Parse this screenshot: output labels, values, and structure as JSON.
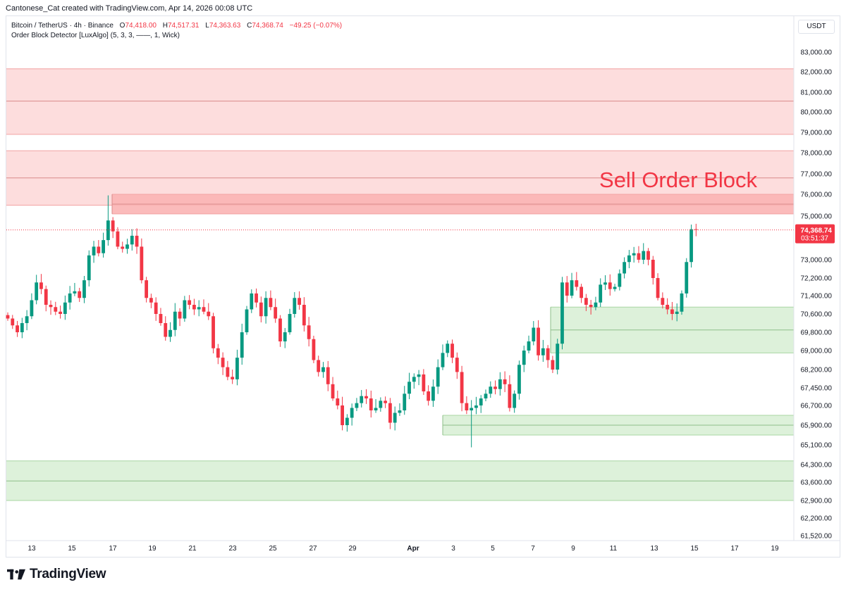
{
  "credit": "Cantonese_Cat created with TradingView.com, Apr 14, 2026 00:08 UTC",
  "legend": {
    "symbol": "Bitcoin / TetherUS · 4h · Binance",
    "o_label": "O",
    "o_value": "74,418.00",
    "h_label": "H",
    "h_value": "74,517.31",
    "l_label": "L",
    "l_value": "74,363.63",
    "c_label": "C",
    "c_value": "74,368.74",
    "change": "−49.25 (−0.07%)",
    "indicator": "Order Block Detector [LuxAlgo] (5, 3, 3, ——, 1, Wick)"
  },
  "currency": "USDT",
  "brand": {
    "name": "TradingView"
  },
  "colors": {
    "up": "#089981",
    "down": "#f23645",
    "bear_zone": "#fdd9d9",
    "bull_zone": "#d9efd6",
    "annotation": "#f23645"
  },
  "chart_data": {
    "type": "candlestick",
    "title": "Bitcoin / TetherUS · 4h · Binance",
    "y_ticks": [
      "83,000.00",
      "82,000.00",
      "81,000.00",
      "80,000.00",
      "79,000.00",
      "78,000.00",
      "77,000.00",
      "76,000.00",
      "75,000.00",
      "73,000.00",
      "72,200.00",
      "71,400.00",
      "70,600.00",
      "69,800.00",
      "69,000.00",
      "68,200.00",
      "67,450.00",
      "66,700.00",
      "65,900.00",
      "65,100.00",
      "64,300.00",
      "63,600.00",
      "62,900.00",
      "62,200.00",
      "61,520.00"
    ],
    "x_ticks": [
      "13",
      "15",
      "17",
      "19",
      "21",
      "23",
      "25",
      "27",
      "29",
      "Apr",
      "3",
      "5",
      "7",
      "9",
      "11",
      "13",
      "15",
      "17",
      "19"
    ],
    "annotation": "Sell Order Block",
    "last_price": {
      "value": 74368.74,
      "label": "74,368.74",
      "countdown": "03:51:37"
    },
    "order_blocks": [
      {
        "type": "bearish",
        "from": "Mar 12",
        "top": 82150,
        "bottom": 78900,
        "mid": 80550
      },
      {
        "type": "bearish",
        "from": "Mar 12",
        "top": 78100,
        "bottom": 75500,
        "mid": 76800
      },
      {
        "type": "bearish",
        "from": "Mar 17",
        "top": 76000,
        "bottom": 75100,
        "mid": 75550
      },
      {
        "type": "bullish",
        "from": "Apr 8",
        "top": 70900,
        "bottom": 68900,
        "mid": 69900
      },
      {
        "type": "bullish",
        "from": "Apr 2",
        "top": 66300,
        "bottom": 65500,
        "mid": 65900
      },
      {
        "type": "bullish",
        "from": "Mar 12",
        "top": 64450,
        "bottom": 62900,
        "mid": 63650
      }
    ],
    "closes": [
      70400,
      70100,
      69800,
      70200,
      70500,
      71200,
      72000,
      71700,
      71000,
      70900,
      70700,
      70600,
      71100,
      71500,
      71600,
      71300,
      72100,
      73200,
      73600,
      73300,
      73900,
      74800,
      74300,
      73600,
      73500,
      73700,
      74100,
      73600,
      72100,
      71300,
      71100,
      70600,
      70200,
      69600,
      69900,
      70700,
      70400,
      71200,
      71000,
      70800,
      70900,
      70700,
      70500,
      69100,
      68700,
      68300,
      67900,
      67800,
      68700,
      69800,
      70800,
      71500,
      71100,
      70500,
      71300,
      70900,
      70400,
      69400,
      69800,
      70600,
      71300,
      71000,
      70100,
      69500,
      68600,
      68100,
      68300,
      67600,
      67000,
      66700,
      65900,
      66200,
      66600,
      66800,
      67100,
      67000,
      66500,
      66600,
      66900,
      66800,
      66000,
      66400,
      66500,
      67200,
      67700,
      67900,
      68000,
      67300,
      66900,
      67500,
      68300,
      68900,
      69300,
      68700,
      68100,
      66800,
      66500,
      66600,
      66700,
      67000,
      67200,
      67500,
      67400,
      67800,
      67600,
      66600,
      67200,
      68400,
      69000,
      69400,
      70000,
      68800,
      69100,
      68600,
      68200,
      69300,
      72000,
      71400,
      72100,
      71800,
      71300,
      71000,
      70900,
      71100,
      71900,
      72000,
      71700,
      71800,
      72400,
      72900,
      73200,
      73300,
      73000,
      73400,
      73000,
      72200,
      71300,
      71000,
      70800,
      70600,
      70700,
      71500,
      72900,
      74400,
      74369
    ]
  }
}
